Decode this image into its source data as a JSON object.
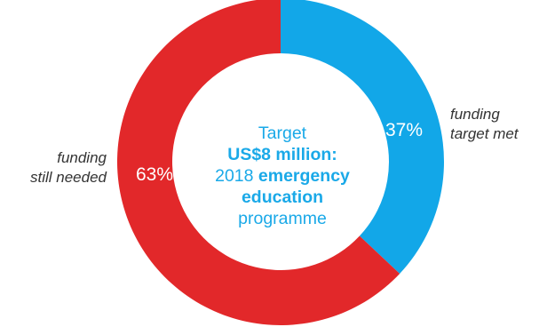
{
  "chart_data": {
    "type": "pie",
    "donut": true,
    "slices": [
      {
        "label": "funding target met",
        "value": 37,
        "value_label": "37%",
        "color": "#12a7e8"
      },
      {
        "label": "funding still needed",
        "value": 63,
        "value_label": "63%",
        "color": "#e2282a"
      }
    ],
    "center": {
      "line1": "Target",
      "line2": "US$8 million:",
      "line3_a": "2018",
      "line3_b": "emergency",
      "line4": "education",
      "line5": "programme"
    },
    "labels": {
      "left_line1": "funding",
      "left_line2": "still needed",
      "right_line1": "funding",
      "right_line2": "target met"
    }
  }
}
